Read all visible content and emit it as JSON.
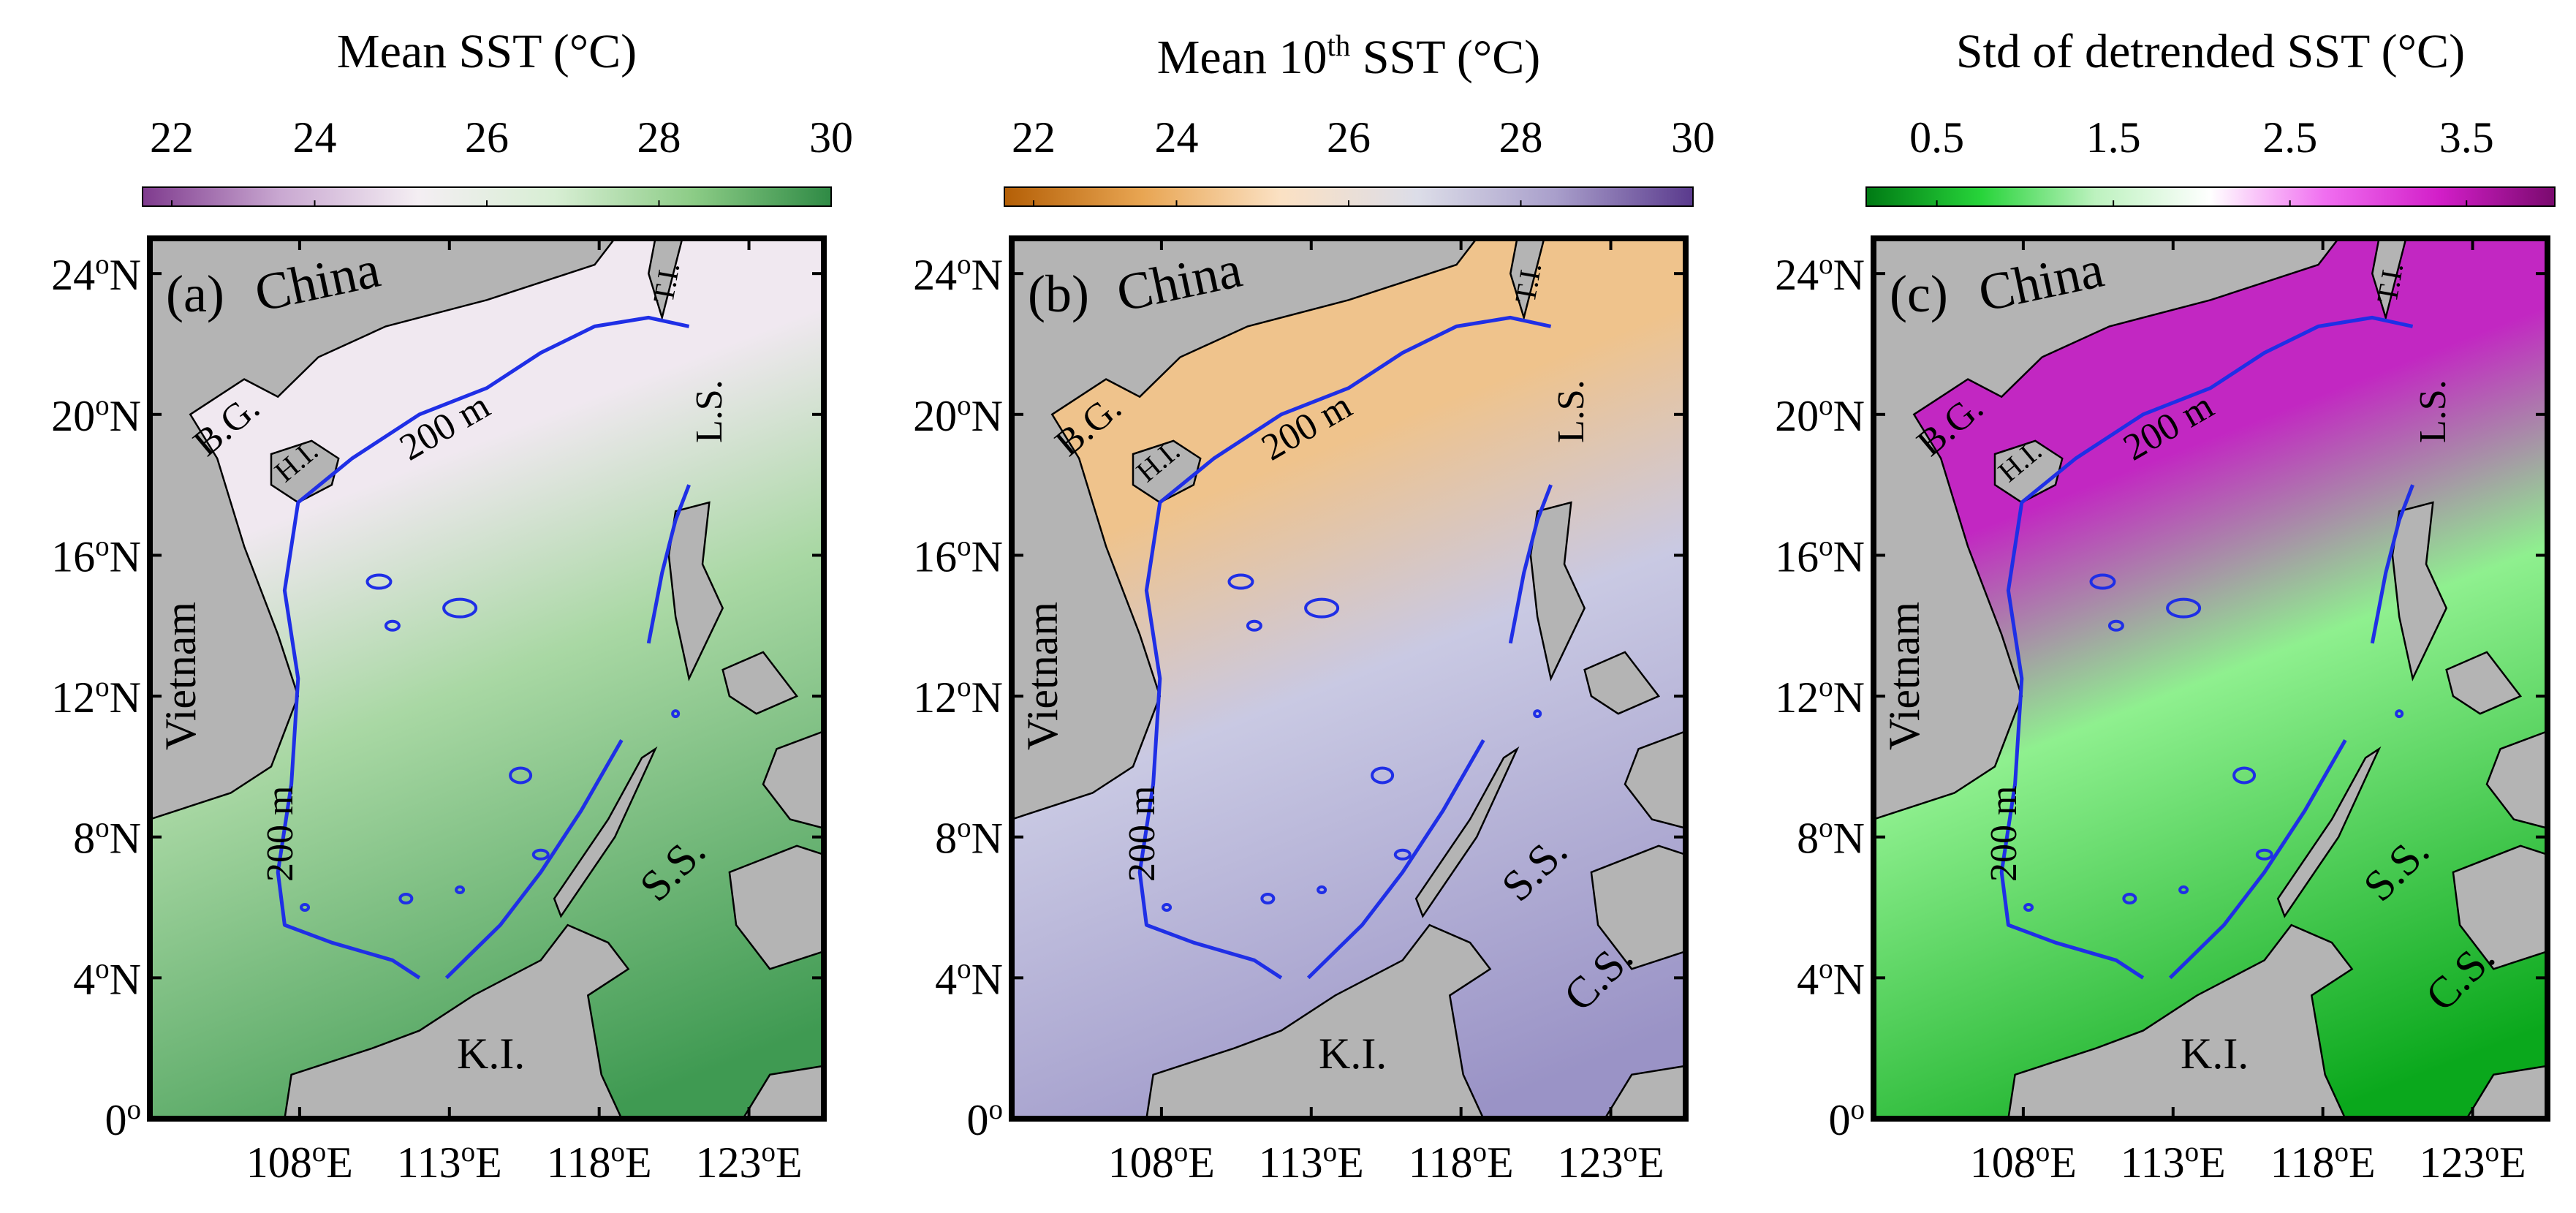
{
  "panels": [
    {
      "letter": "(a)",
      "title_main": "Mean SST (°C)",
      "title_pre": "",
      "title_sup": "",
      "title_post": "",
      "cbar_ticks": [
        "22",
        "24",
        "26",
        "28",
        "30"
      ],
      "cbar_colors": [
        "#7f3b8e",
        "#c9a8d1",
        "#f4eef3",
        "#d7eed3",
        "#8ccc86",
        "#2f8a45"
      ],
      "sea_colors": {
        "north": "#f0e8f0",
        "mid": "#a9d8a4",
        "south": "#3f9a52"
      },
      "extra_labels": {
        "ss": "S.S.",
        "cs": ""
      }
    },
    {
      "letter": "(b)",
      "title_main": "",
      "title_pre": "Mean 10",
      "title_sup": "th",
      "title_post": " SST (°C)",
      "cbar_ticks": [
        "22",
        "24",
        "26",
        "28",
        "30"
      ],
      "cbar_colors": [
        "#b45f06",
        "#e8a552",
        "#fbe1c3",
        "#dcdde8",
        "#a99fcb",
        "#5a3a8d"
      ],
      "sea_colors": {
        "north": "#efc38c",
        "mid": "#c9c9e3",
        "south": "#9a93c6"
      },
      "extra_labels": {
        "ss": "S.S.",
        "cs": "C.S."
      }
    },
    {
      "letter": "(c)",
      "title_main": "Std of detrended SST (°C)",
      "title_pre": "",
      "title_sup": "",
      "title_post": "",
      "cbar_ticks": [
        "0.5",
        "1.5",
        "2.5",
        "3.5"
      ],
      "cbar_colors": [
        "#007a14",
        "#27d43a",
        "#bdf2bf",
        "#ffffff",
        "#f06ef0",
        "#d21ec8",
        "#7a0a6e"
      ],
      "sea_colors": {
        "north": "#c227c2",
        "mid": "#8ff08f",
        "south": "#0aa81c"
      },
      "extra_labels": {
        "ss": "S.S.",
        "cs": "C.S."
      }
    }
  ],
  "y_ticks": [
    "24",
    "20",
    "16",
    "12",
    "8",
    "4",
    "0"
  ],
  "y_hemi": "N",
  "x_ticks": [
    "108",
    "113",
    "118",
    "123"
  ],
  "x_hemi": "E",
  "degree_sup": "o",
  "labels": {
    "china": "China",
    "vietnam": "Vietnam",
    "bg": "B.G.",
    "hi": "H.I.",
    "ti": "T.I.",
    "ls": "L.S.",
    "ki": "K.I.",
    "isobath": "200 m"
  },
  "colors": {
    "land": "#b4b4b4",
    "isobath": "#1f2fe6",
    "frame": "#000000"
  }
}
